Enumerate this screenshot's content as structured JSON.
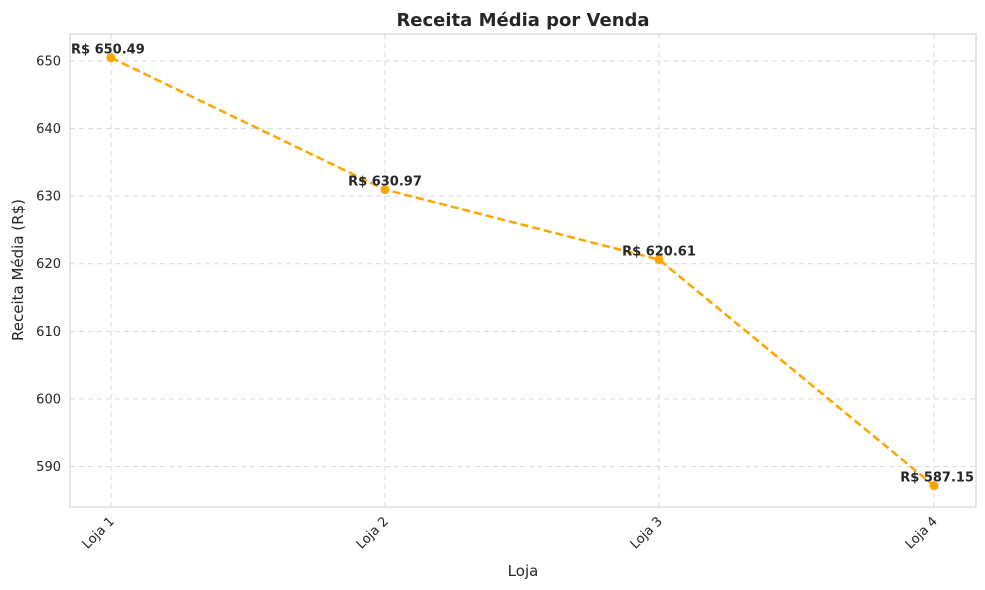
{
  "chart_data": {
    "type": "line",
    "title": "Receita Média por Venda",
    "xlabel": "Loja",
    "ylabel": "Receita Média (R$)",
    "categories": [
      "Loja 1",
      "Loja 2",
      "Loja 3",
      "Loja 4"
    ],
    "series": [
      {
        "values": [
          650.49,
          630.97,
          620.61,
          587.15
        ],
        "labels": [
          "R$ 650.49",
          "R$ 630.97",
          "R$ 620.61",
          "R$ 587.15"
        ],
        "color": "#ffa500",
        "line_style": "dashed",
        "marker": "circle"
      }
    ],
    "ylim": [
      584,
      654
    ],
    "yticks": [
      "590",
      "600",
      "610",
      "620",
      "630",
      "640",
      "650"
    ],
    "grid": true,
    "legend": "none"
  }
}
